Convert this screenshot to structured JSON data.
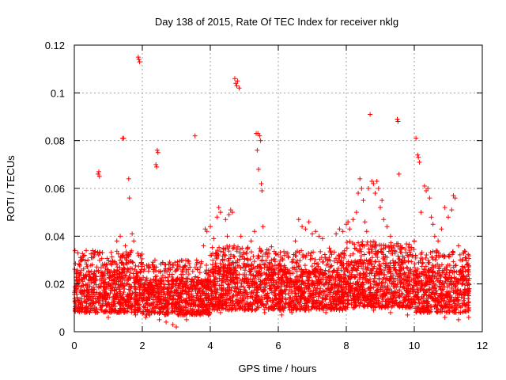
{
  "chart_data": {
    "type": "scatter",
    "title": "Day 138 of 2015, Rate Of TEC Index for receiver nklg",
    "xlabel": "GPS time / hours",
    "ylabel": "ROTI / TECUs",
    "xlim": [
      0,
      12
    ],
    "ylim": [
      0,
      0.12
    ],
    "x_ticks": [
      0,
      2,
      4,
      6,
      8,
      10,
      12
    ],
    "x_tick_labels": [
      "0",
      "2",
      "4",
      "6",
      "8",
      "10",
      "12"
    ],
    "y_ticks": [
      0,
      0.02,
      0.04,
      0.06,
      0.08,
      0.1,
      0.12
    ],
    "y_tick_labels": [
      "0",
      "0.02",
      "0.04",
      "0.06",
      "0.08",
      "0.1",
      "0.12"
    ],
    "grid": true,
    "marker": "+",
    "marker_color": "#ff0000",
    "series": [
      {
        "name": "ROTI",
        "points": [
          [
            0.02,
            0.034
          ],
          [
            0.05,
            0.025
          ],
          [
            0.1,
            0.033
          ],
          [
            0.15,
            0.028
          ],
          [
            0.2,
            0.03
          ],
          [
            0.3,
            0.032
          ],
          [
            0.35,
            0.034
          ],
          [
            0.4,
            0.03
          ],
          [
            0.5,
            0.031
          ],
          [
            0.6,
            0.033
          ],
          [
            0.7,
            0.066
          ],
          [
            0.72,
            0.067
          ],
          [
            0.74,
            0.065
          ],
          [
            0.9,
            0.025
          ],
          [
            1.1,
            0.028
          ],
          [
            1.25,
            0.038
          ],
          [
            1.35,
            0.04
          ],
          [
            1.42,
            0.081
          ],
          [
            1.45,
            0.081
          ],
          [
            1.5,
            0.036
          ],
          [
            1.55,
            0.03
          ],
          [
            1.6,
            0.064
          ],
          [
            1.62,
            0.056
          ],
          [
            1.7,
            0.041
          ],
          [
            1.75,
            0.038
          ],
          [
            1.88,
            0.115
          ],
          [
            1.9,
            0.114
          ],
          [
            1.92,
            0.113
          ],
          [
            2.0,
            0.028
          ],
          [
            2.2,
            0.027
          ],
          [
            2.4,
            0.07
          ],
          [
            2.42,
            0.069
          ],
          [
            2.44,
            0.076
          ],
          [
            2.46,
            0.075
          ],
          [
            2.6,
            0.029
          ],
          [
            2.8,
            0.024
          ],
          [
            3.0,
            0.022
          ],
          [
            3.2,
            0.024
          ],
          [
            3.4,
            0.027
          ],
          [
            3.55,
            0.082
          ],
          [
            3.6,
            0.03
          ],
          [
            3.8,
            0.036
          ],
          [
            3.85,
            0.043
          ],
          [
            3.9,
            0.042
          ],
          [
            4.0,
            0.044
          ],
          [
            4.1,
            0.039
          ],
          [
            4.2,
            0.048
          ],
          [
            4.25,
            0.052
          ],
          [
            4.3,
            0.05
          ],
          [
            4.45,
            0.047
          ],
          [
            4.5,
            0.04
          ],
          [
            4.55,
            0.049
          ],
          [
            4.6,
            0.051
          ],
          [
            4.65,
            0.05
          ],
          [
            4.7,
            0.036
          ],
          [
            4.72,
            0.106
          ],
          [
            4.75,
            0.104
          ],
          [
            4.78,
            0.103
          ],
          [
            4.8,
            0.105
          ],
          [
            4.85,
            0.102
          ],
          [
            4.9,
            0.04
          ],
          [
            5.1,
            0.035
          ],
          [
            5.2,
            0.038
          ],
          [
            5.3,
            0.042
          ],
          [
            5.35,
            0.083
          ],
          [
            5.38,
            0.076
          ],
          [
            5.4,
            0.083
          ],
          [
            5.42,
            0.068
          ],
          [
            5.45,
            0.082
          ],
          [
            5.48,
            0.08
          ],
          [
            5.5,
            0.062
          ],
          [
            5.52,
            0.059
          ],
          [
            5.55,
            0.044
          ],
          [
            5.8,
            0.03
          ],
          [
            6.0,
            0.028
          ],
          [
            6.2,
            0.027
          ],
          [
            6.5,
            0.038
          ],
          [
            6.6,
            0.047
          ],
          [
            6.7,
            0.044
          ],
          [
            6.8,
            0.043
          ],
          [
            6.9,
            0.046
          ],
          [
            7.0,
            0.041
          ],
          [
            7.1,
            0.042
          ],
          [
            7.2,
            0.04
          ],
          [
            7.3,
            0.039
          ],
          [
            7.5,
            0.035
          ],
          [
            7.7,
            0.041
          ],
          [
            7.8,
            0.043
          ],
          [
            7.9,
            0.042
          ],
          [
            8.0,
            0.045
          ],
          [
            8.05,
            0.046
          ],
          [
            8.1,
            0.043
          ],
          [
            8.2,
            0.047
          ],
          [
            8.3,
            0.05
          ],
          [
            8.35,
            0.058
          ],
          [
            8.4,
            0.064
          ],
          [
            8.45,
            0.06
          ],
          [
            8.5,
            0.055
          ],
          [
            8.55,
            0.046
          ],
          [
            8.6,
            0.042
          ],
          [
            8.65,
            0.06
          ],
          [
            8.7,
            0.091
          ],
          [
            8.75,
            0.063
          ],
          [
            8.8,
            0.062
          ],
          [
            8.85,
            0.058
          ],
          [
            8.9,
            0.063
          ],
          [
            8.95,
            0.06
          ],
          [
            9.0,
            0.052
          ],
          [
            9.05,
            0.055
          ],
          [
            9.1,
            0.047
          ],
          [
            9.2,
            0.044
          ],
          [
            9.3,
            0.04
          ],
          [
            9.4,
            0.036
          ],
          [
            9.5,
            0.089
          ],
          [
            9.52,
            0.088
          ],
          [
            9.55,
            0.066
          ],
          [
            9.6,
            0.036
          ],
          [
            9.8,
            0.032
          ],
          [
            10.0,
            0.038
          ],
          [
            10.05,
            0.081
          ],
          [
            10.1,
            0.074
          ],
          [
            10.12,
            0.073
          ],
          [
            10.15,
            0.071
          ],
          [
            10.2,
            0.05
          ],
          [
            10.3,
            0.061
          ],
          [
            10.35,
            0.059
          ],
          [
            10.4,
            0.06
          ],
          [
            10.45,
            0.056
          ],
          [
            10.5,
            0.048
          ],
          [
            10.55,
            0.045
          ],
          [
            10.6,
            0.04
          ],
          [
            10.7,
            0.038
          ],
          [
            10.8,
            0.043
          ],
          [
            10.9,
            0.052
          ],
          [
            11.0,
            0.048
          ],
          [
            11.1,
            0.051
          ],
          [
            11.15,
            0.057
          ],
          [
            11.2,
            0.056
          ],
          [
            11.3,
            0.036
          ],
          [
            11.4,
            0.03
          ],
          [
            11.5,
            0.031
          ],
          [
            11.55,
            0.028
          ],
          [
            11.6,
            0.025
          ],
          [
            0.25,
            0.01
          ],
          [
            0.45,
            0.008
          ],
          [
            0.8,
            0.009
          ],
          [
            1.0,
            0.006
          ],
          [
            1.3,
            0.008
          ],
          [
            1.8,
            0.007
          ],
          [
            2.1,
            0.006
          ],
          [
            2.5,
            0.005
          ],
          [
            2.7,
            0.004
          ],
          [
            2.9,
            0.003
          ],
          [
            3.0,
            0.002
          ],
          [
            3.3,
            0.005
          ],
          [
            3.7,
            0.007
          ],
          [
            4.3,
            0.008
          ],
          [
            5.0,
            0.009
          ],
          [
            5.6,
            0.008
          ],
          [
            6.1,
            0.007
          ],
          [
            6.4,
            0.008
          ],
          [
            6.9,
            0.009
          ],
          [
            7.4,
            0.008
          ],
          [
            7.8,
            0.009
          ],
          [
            8.2,
            0.01
          ],
          [
            8.8,
            0.009
          ],
          [
            9.3,
            0.008
          ],
          [
            9.8,
            0.007
          ],
          [
            10.4,
            0.008
          ],
          [
            10.9,
            0.006
          ],
          [
            11.3,
            0.005
          ],
          [
            11.6,
            0.006
          ]
        ],
        "band": {
          "x_range": [
            0,
            11.62
          ],
          "segments": [
            {
              "x_from": 0,
              "x_to": 2.0,
              "y_low": 0.008,
              "y_high": 0.026
            },
            {
              "x_from": 2.0,
              "x_to": 4.0,
              "y_low": 0.007,
              "y_high": 0.022
            },
            {
              "x_from": 4.0,
              "x_to": 6.0,
              "y_low": 0.009,
              "y_high": 0.028
            },
            {
              "x_from": 6.0,
              "x_to": 8.0,
              "y_low": 0.009,
              "y_high": 0.026
            },
            {
              "x_from": 8.0,
              "x_to": 10.0,
              "y_low": 0.01,
              "y_high": 0.03
            },
            {
              "x_from": 10.0,
              "x_to": 11.62,
              "y_low": 0.008,
              "y_high": 0.026
            }
          ]
        }
      }
    ]
  }
}
